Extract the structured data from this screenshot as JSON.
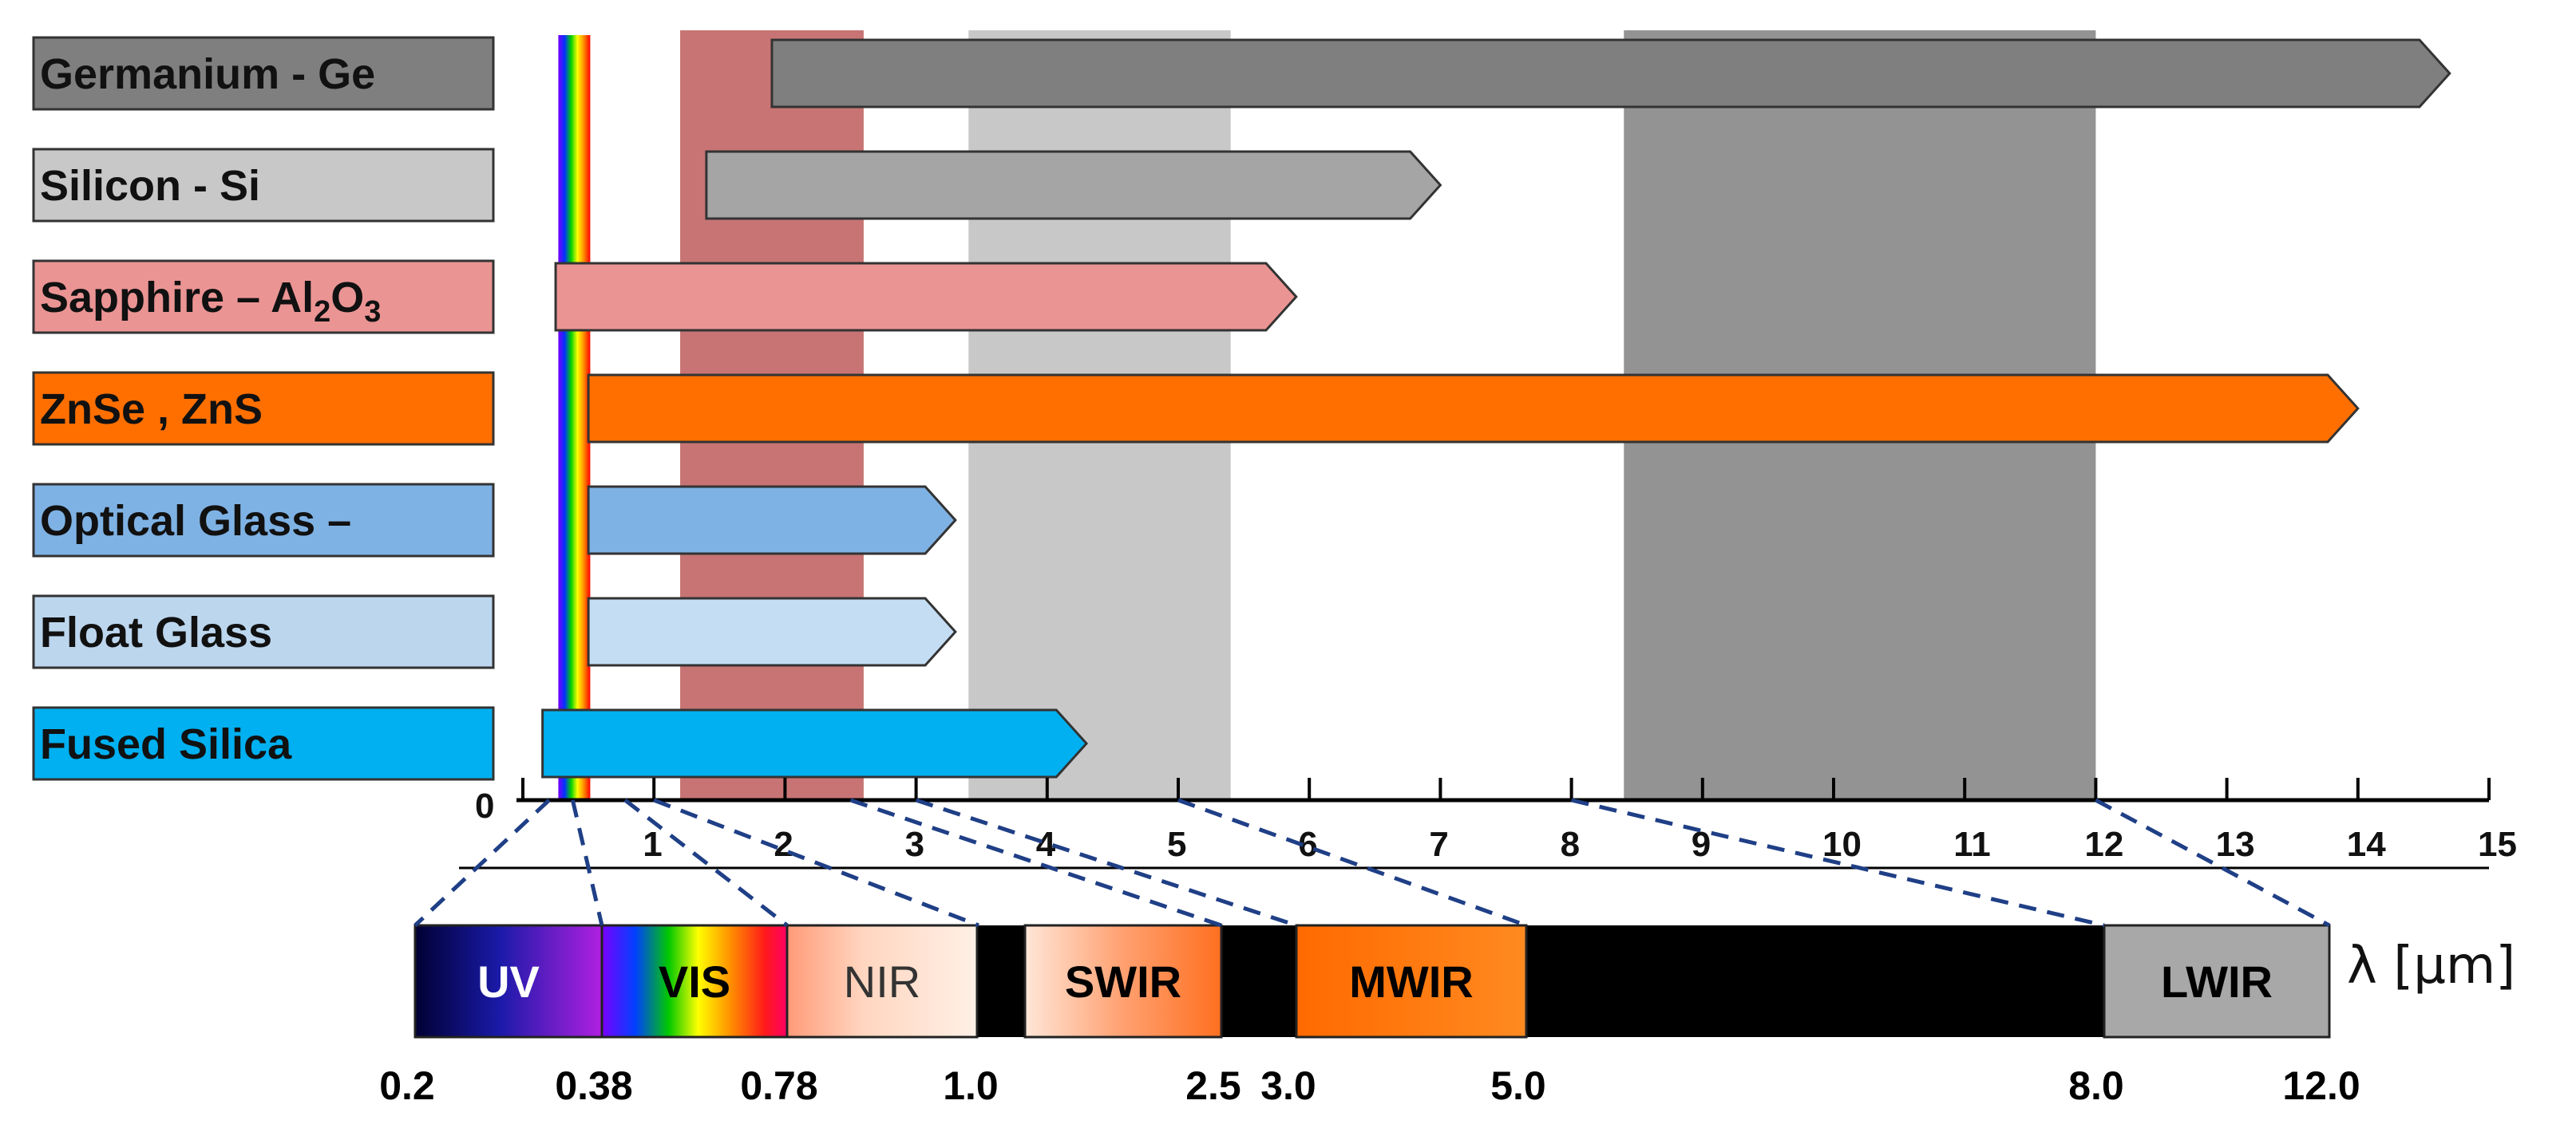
{
  "chart_data": {
    "type": "bar",
    "title": "",
    "xlabel": "λ [µm]",
    "xlim": [
      0,
      15
    ],
    "x_ticks": [
      0,
      1,
      2,
      3,
      4,
      5,
      6,
      7,
      8,
      9,
      10,
      11,
      12,
      13,
      14,
      15
    ],
    "materials": [
      {
        "name": "Germanium - Ge",
        "label_fill": "#7f7f7f",
        "bar_fill": "#7f7f7f",
        "start": 1.9,
        "end": 14.7
      },
      {
        "name": "Silicon - Si",
        "label_fill": "#c8c8c8",
        "bar_fill": "#a5a5a5",
        "start": 1.4,
        "end": 7.0
      },
      {
        "name": "Sapphire – Al",
        "sub1": "2",
        "mid": "O",
        "sub2": "3",
        "label_fill": "#eb9494",
        "bar_fill": "#eb9494",
        "start": 0.25,
        "end": 5.9
      },
      {
        "name": "ZnSe , ZnS",
        "label_fill": "#ff6f00",
        "bar_fill": "#ff6f00",
        "start": 0.5,
        "end": 14.0
      },
      {
        "name": "Optical Glass –",
        "label_fill": "#7fb2e4",
        "bar_fill": "#7fb2e4",
        "start": 0.5,
        "end": 3.3
      },
      {
        "name": "Float Glass",
        "label_fill": "#bcd6ee",
        "bar_fill": "#c5ddf3",
        "start": 0.5,
        "end": 3.3
      },
      {
        "name": "Fused Silica",
        "label_fill": "#00b0f0",
        "bar_fill": "#00b0f0",
        "start": 0.15,
        "end": 4.3
      }
    ],
    "bands": [
      {
        "name": "UV",
        "from": 0.2,
        "to": 0.38,
        "text_color": "#ffffff"
      },
      {
        "name": "VIS",
        "from": 0.38,
        "to": 0.78,
        "text_color": "#000000"
      },
      {
        "name": "NIR",
        "from": 0.78,
        "to": 1.0,
        "text_color": "#333333"
      },
      {
        "name": "SWIR",
        "from": 1.0,
        "to": 2.5,
        "text_color": "#000000"
      },
      {
        "name": "MWIR",
        "from": 3.0,
        "to": 5.0,
        "text_color": "#000000"
      },
      {
        "name": "LWIR",
        "from": 8.0,
        "to": 12.0,
        "text_color": "#000000"
      }
    ],
    "band_boundaries": [
      "0.2",
      "0.38",
      "0.78",
      "1.0",
      "2.5",
      "3.0",
      "5.0",
      "8.0",
      "12.0"
    ],
    "background_regions": [
      {
        "from": 1.2,
        "to": 2.6,
        "color": "#c87474"
      },
      {
        "from": 3.4,
        "to": 5.4,
        "color": "#c8c8c8"
      },
      {
        "from": 8.4,
        "to": 12.0,
        "color": "#939393"
      }
    ]
  }
}
